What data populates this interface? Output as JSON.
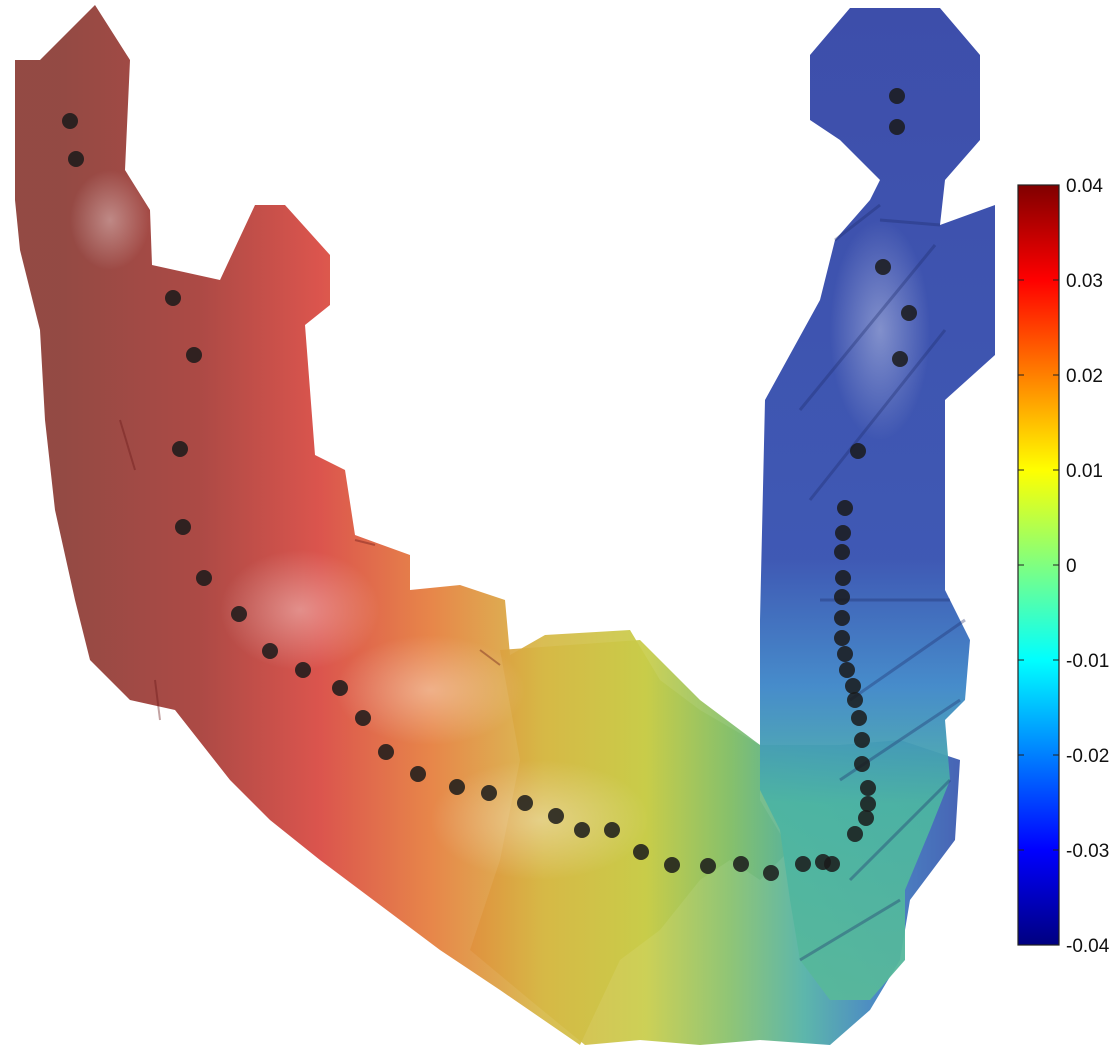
{
  "chart_data": {
    "type": "surface",
    "title": "",
    "xlabel": "",
    "ylabel": "",
    "colorbar": {
      "colormap": "jet",
      "clim": [
        -0.04,
        0.04
      ],
      "ticks": [
        0.04,
        0.03,
        0.02,
        0.01,
        0,
        -0.01,
        -0.02,
        -0.03,
        -0.04
      ],
      "tick_labels": [
        "0.04",
        "0.03",
        "0.02",
        "0.01",
        "0",
        "-0.01",
        "-0.02",
        "-0.03",
        "-0.04"
      ],
      "placement": "right"
    },
    "surface_gradient": {
      "left_arm_value": 0.04,
      "bend_value": 0.01,
      "right_arm_value": -0.035
    },
    "marker_series": {
      "marker": "filled-circle",
      "color": "#1a1a1a",
      "count": 52
    }
  }
}
